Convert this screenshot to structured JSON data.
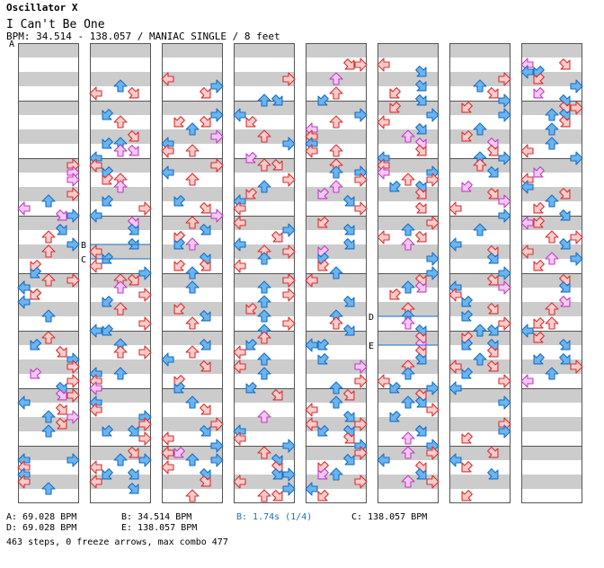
{
  "header": {
    "artist": "Oscillator X",
    "song": "I Can't Be One",
    "info": "BPM: 34.514 - 138.057 / MANIAC SINGLE / 8 feet"
  },
  "markers": [
    {
      "label": "A",
      "col": 0,
      "beat": 0
    },
    {
      "label": "B",
      "col": 1,
      "beat": 14.0
    },
    {
      "label": "C",
      "col": 1,
      "beat": 15.0
    },
    {
      "label": "D",
      "col": 5,
      "beat": 19.0
    },
    {
      "label": "E",
      "col": 5,
      "beat": 21.0
    }
  ],
  "legend": {
    "a": "A: 69.028 BPM",
    "b": "B: 34.514 BPM",
    "stop": "B: 1.74s (1/4)",
    "c": "C: 138.057 BPM",
    "d": "D: 69.028 BPM",
    "e": "E: 138.057 BPM"
  },
  "stats": "463 steps, 0 freeze arrows, max combo 477",
  "colors": {
    "quarter_fill": "#ffcccc",
    "quarter_stroke": "#d62f2f",
    "eighth_fill": "#6ab4f0",
    "eighth_stroke": "#1a6ec2",
    "sixteenth_fill": "#f5c8f5",
    "sixteenth_stroke": "#c03cc0",
    "band": "#cccccc",
    "stop_text": "#1a6ec2"
  },
  "icons": {
    "arrow": "dance-arrow-icon"
  },
  "columns": 8,
  "measures_per_column": 8
}
